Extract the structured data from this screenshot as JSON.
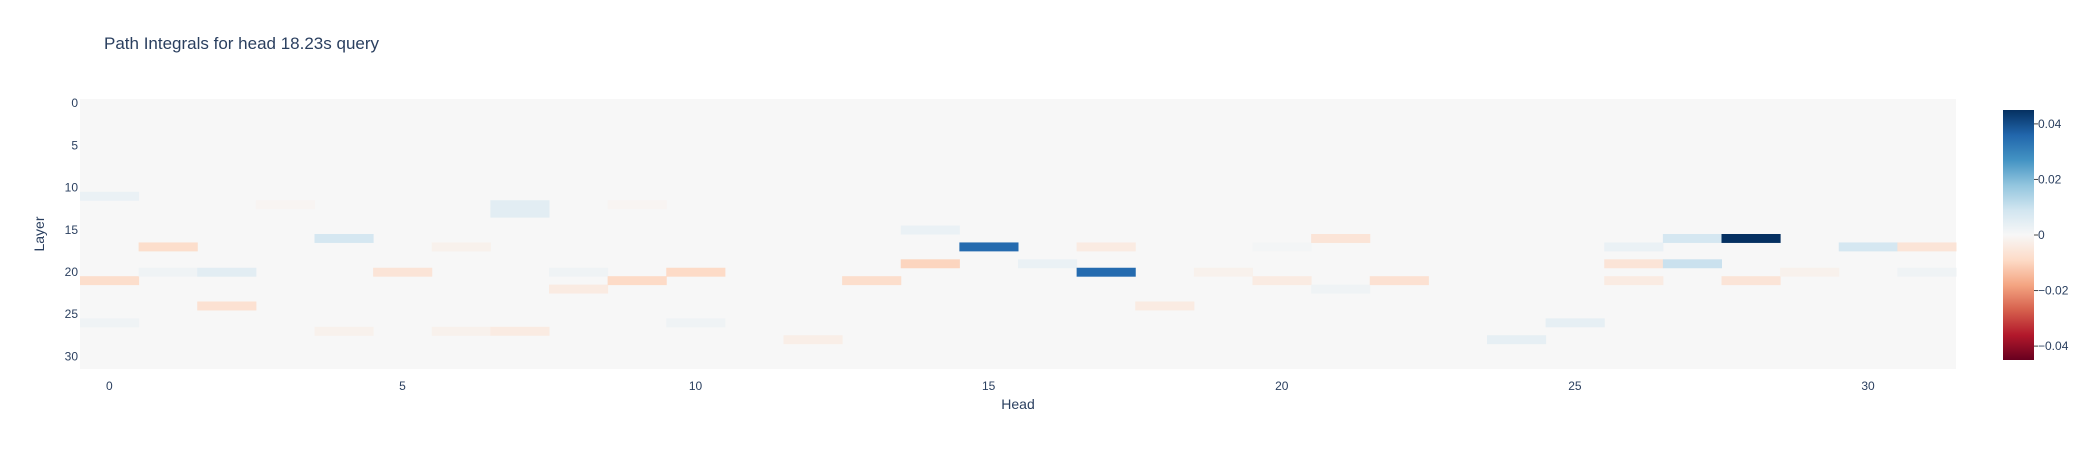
{
  "chart_data": {
    "type": "heatmap",
    "title": "Path Integrals for head 18.23s query",
    "xlabel": "Head",
    "ylabel": "Layer",
    "x_range": [
      0,
      31
    ],
    "y_range": [
      0,
      31
    ],
    "y_reversed": true,
    "x_ticks": [
      "0",
      "5",
      "10",
      "15",
      "20",
      "25",
      "30"
    ],
    "y_ticks": [
      "0",
      "5",
      "10",
      "15",
      "20",
      "25",
      "30"
    ],
    "colorscale": "RdBu",
    "zmin": -0.045,
    "zmax": 0.045,
    "colorbar_ticks": [
      "0.04",
      "0.02",
      "0",
      "−0.02",
      "−0.04"
    ],
    "colorbar_tick_values": [
      0.04,
      0.02,
      0,
      -0.02,
      -0.04
    ],
    "background_value": 0,
    "cells": [
      {
        "head": 0,
        "layer": 11,
        "value": 0.003
      },
      {
        "head": 0,
        "layer": 21,
        "value": -0.008
      },
      {
        "head": 0,
        "layer": 26,
        "value": 0.002
      },
      {
        "head": 1,
        "layer": 17,
        "value": -0.008
      },
      {
        "head": 1,
        "layer": 20,
        "value": 0.002
      },
      {
        "head": 2,
        "layer": 20,
        "value": 0.005
      },
      {
        "head": 2,
        "layer": 24,
        "value": -0.007
      },
      {
        "head": 3,
        "layer": 12,
        "value": -0.001
      },
      {
        "head": 4,
        "layer": 16,
        "value": 0.008
      },
      {
        "head": 4,
        "layer": 27,
        "value": -0.002
      },
      {
        "head": 5,
        "layer": 20,
        "value": -0.006
      },
      {
        "head": 6,
        "layer": 17,
        "value": -0.002
      },
      {
        "head": 6,
        "layer": 27,
        "value": -0.002
      },
      {
        "head": 7,
        "layer": 12,
        "value": 0.005
      },
      {
        "head": 7,
        "layer": 13,
        "value": 0.005
      },
      {
        "head": 7,
        "layer": 27,
        "value": -0.004
      },
      {
        "head": 8,
        "layer": 20,
        "value": 0.002
      },
      {
        "head": 8,
        "layer": 22,
        "value": -0.004
      },
      {
        "head": 9,
        "layer": 12,
        "value": -0.001
      },
      {
        "head": 9,
        "layer": 21,
        "value": -0.009
      },
      {
        "head": 10,
        "layer": 20,
        "value": -0.009
      },
      {
        "head": 10,
        "layer": 26,
        "value": 0.002
      },
      {
        "head": 12,
        "layer": 28,
        "value": -0.003
      },
      {
        "head": 13,
        "layer": 21,
        "value": -0.008
      },
      {
        "head": 14,
        "layer": 15,
        "value": 0.003
      },
      {
        "head": 14,
        "layer": 19,
        "value": -0.01
      },
      {
        "head": 15,
        "layer": 17,
        "value": 0.035
      },
      {
        "head": 16,
        "layer": 19,
        "value": 0.003
      },
      {
        "head": 17,
        "layer": 17,
        "value": -0.004
      },
      {
        "head": 17,
        "layer": 20,
        "value": 0.035
      },
      {
        "head": 18,
        "layer": 24,
        "value": -0.004
      },
      {
        "head": 19,
        "layer": 20,
        "value": -0.002
      },
      {
        "head": 20,
        "layer": 17,
        "value": 0.001
      },
      {
        "head": 20,
        "layer": 21,
        "value": -0.004
      },
      {
        "head": 21,
        "layer": 16,
        "value": -0.006
      },
      {
        "head": 21,
        "layer": 22,
        "value": 0.002
      },
      {
        "head": 22,
        "layer": 21,
        "value": -0.007
      },
      {
        "head": 24,
        "layer": 28,
        "value": 0.004
      },
      {
        "head": 25,
        "layer": 26,
        "value": 0.004
      },
      {
        "head": 26,
        "layer": 17,
        "value": 0.003
      },
      {
        "head": 26,
        "layer": 19,
        "value": -0.006
      },
      {
        "head": 26,
        "layer": 21,
        "value": -0.004
      },
      {
        "head": 27,
        "layer": 16,
        "value": 0.008
      },
      {
        "head": 27,
        "layer": 19,
        "value": 0.01
      },
      {
        "head": 28,
        "layer": 16,
        "value": 0.045
      },
      {
        "head": 28,
        "layer": 21,
        "value": -0.006
      },
      {
        "head": 29,
        "layer": 20,
        "value": -0.002
      },
      {
        "head": 30,
        "layer": 17,
        "value": 0.008
      },
      {
        "head": 31,
        "layer": 17,
        "value": -0.006
      },
      {
        "head": 31,
        "layer": 20,
        "value": 0.002
      }
    ]
  }
}
